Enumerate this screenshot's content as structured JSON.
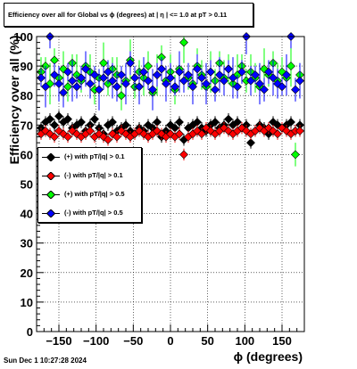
{
  "title": "Efficiency over all for Global vs ϕ (degrees) at | η | <= 1.0 at pT > 0.11",
  "footer": "Sun Dec  1 10:27:28 2024",
  "chart_data": {
    "type": "scatter",
    "title": "Efficiency over all for Global vs ϕ (degrees) at | η | <= 1.0 at pT > 0.11",
    "xlabel": "ϕ (degrees)",
    "ylabel": "Efficiency over all (%)",
    "xlim": [
      -180,
      180
    ],
    "ylim": [
      0,
      100
    ],
    "xticks": [
      -150,
      -100,
      -50,
      0,
      50,
      100,
      150
    ],
    "xtick_labels": [
      "−150",
      "−100",
      "−50",
      "0",
      "50",
      "100",
      "150"
    ],
    "yticks": [
      0,
      10,
      20,
      30,
      40,
      50,
      60,
      70,
      80,
      90,
      100
    ],
    "grid": true,
    "legend_position": "left-middle",
    "series": [
      {
        "name": "(+) with pT/|q| > 0.1",
        "color": "#000000",
        "marker": "diamond",
        "x": [
          -174,
          -168,
          -162,
          -156,
          -150,
          -144,
          -138,
          -132,
          -126,
          -120,
          -114,
          -108,
          -102,
          -96,
          -90,
          -84,
          -78,
          -72,
          -66,
          -60,
          -54,
          -48,
          -42,
          -36,
          -30,
          -24,
          -18,
          -12,
          -6,
          0,
          6,
          12,
          18,
          24,
          30,
          36,
          42,
          48,
          54,
          60,
          66,
          72,
          78,
          84,
          90,
          96,
          102,
          108,
          114,
          120,
          126,
          132,
          138,
          144,
          150,
          156,
          162,
          168,
          174
        ],
        "y": [
          69,
          71,
          72,
          70,
          73,
          71,
          72,
          69,
          70,
          71,
          68,
          70,
          72,
          69,
          67,
          70,
          71,
          68,
          69,
          70,
          68,
          67,
          69,
          68,
          70,
          69,
          71,
          66,
          68,
          70,
          69,
          71,
          65,
          69,
          70,
          71,
          69,
          68,
          70,
          71,
          69,
          70,
          72,
          70,
          71,
          69,
          70,
          64,
          68,
          70,
          69,
          67,
          71,
          70,
          69,
          70,
          71,
          68,
          70
        ]
      },
      {
        "name": "(-) with pT/|q| > 0.1",
        "color": "#ff0000",
        "marker": "diamond",
        "x": [
          -174,
          -168,
          -162,
          -156,
          -150,
          -144,
          -138,
          -132,
          -126,
          -120,
          -114,
          -108,
          -102,
          -96,
          -90,
          -84,
          -78,
          -72,
          -66,
          -60,
          -54,
          -48,
          -42,
          -36,
          -30,
          -24,
          -18,
          -12,
          -6,
          0,
          6,
          12,
          18,
          24,
          30,
          36,
          42,
          48,
          54,
          60,
          66,
          72,
          78,
          84,
          90,
          96,
          102,
          108,
          114,
          120,
          126,
          132,
          138,
          144,
          150,
          156,
          162,
          168,
          174
        ],
        "y": [
          67,
          68,
          67,
          66,
          68,
          67,
          66,
          68,
          67,
          66,
          67,
          68,
          66,
          67,
          66,
          65,
          67,
          66,
          68,
          67,
          66,
          67,
          68,
          67,
          66,
          67,
          68,
          67,
          66,
          67,
          66,
          67,
          60,
          66,
          67,
          68,
          67,
          69,
          68,
          67,
          68,
          69,
          68,
          67,
          68,
          69,
          68,
          67,
          68,
          69,
          68,
          69,
          68,
          67,
          69,
          68,
          67,
          68,
          68
        ]
      },
      {
        "name": "(+) with pT/|q| > 0.5",
        "color": "#00ff00",
        "marker": "diamond",
        "x": [
          -174,
          -168,
          -162,
          -156,
          -150,
          -144,
          -138,
          -132,
          -126,
          -120,
          -114,
          -108,
          -102,
          -96,
          -90,
          -84,
          -78,
          -72,
          -66,
          -60,
          -54,
          -48,
          -42,
          -36,
          -30,
          -24,
          -18,
          -12,
          -6,
          0,
          6,
          12,
          18,
          24,
          30,
          36,
          42,
          48,
          54,
          60,
          66,
          72,
          78,
          84,
          90,
          96,
          102,
          108,
          114,
          120,
          126,
          132,
          138,
          144,
          150,
          156,
          162,
          168,
          174
        ],
        "y": [
          88,
          90,
          84,
          92,
          86,
          89,
          83,
          91,
          87,
          85,
          90,
          88,
          82,
          86,
          91,
          84,
          89,
          87,
          80,
          85,
          92,
          83,
          88,
          86,
          90,
          81,
          87,
          93,
          85,
          88,
          82,
          89,
          98,
          86,
          84,
          90,
          87,
          83,
          88,
          85,
          91,
          86,
          89,
          84,
          87,
          90,
          85,
          88,
          86,
          83,
          89,
          87,
          91,
          85,
          88,
          86,
          90,
          60,
          87
        ]
      },
      {
        "name": "(-) with pT/|q| > 0.5",
        "color": "#0000ff",
        "marker": "diamond",
        "x": [
          -174,
          -168,
          -162,
          -156,
          -150,
          -144,
          -138,
          -132,
          -126,
          -120,
          -114,
          -108,
          -102,
          -96,
          -90,
          -84,
          -78,
          -72,
          -66,
          -60,
          -54,
          -48,
          -42,
          -36,
          -30,
          -24,
          -18,
          -12,
          -6,
          0,
          6,
          12,
          18,
          24,
          30,
          36,
          42,
          48,
          54,
          60,
          66,
          72,
          78,
          84,
          90,
          96,
          102,
          108,
          114,
          120,
          126,
          132,
          138,
          144,
          150,
          156,
          162,
          168,
          174
        ],
        "y": [
          86,
          83,
          100,
          87,
          84,
          81,
          88,
          85,
          83,
          86,
          89,
          84,
          87,
          82,
          86,
          88,
          85,
          83,
          87,
          84,
          91,
          86,
          83,
          88,
          85,
          82,
          87,
          89,
          84,
          86,
          83,
          88,
          85,
          87,
          83,
          89,
          86,
          84,
          88,
          82,
          87,
          85,
          89,
          86,
          83,
          88,
          100,
          85,
          87,
          84,
          82,
          88,
          86,
          84,
          83,
          87,
          100,
          82,
          85
        ]
      }
    ]
  }
}
